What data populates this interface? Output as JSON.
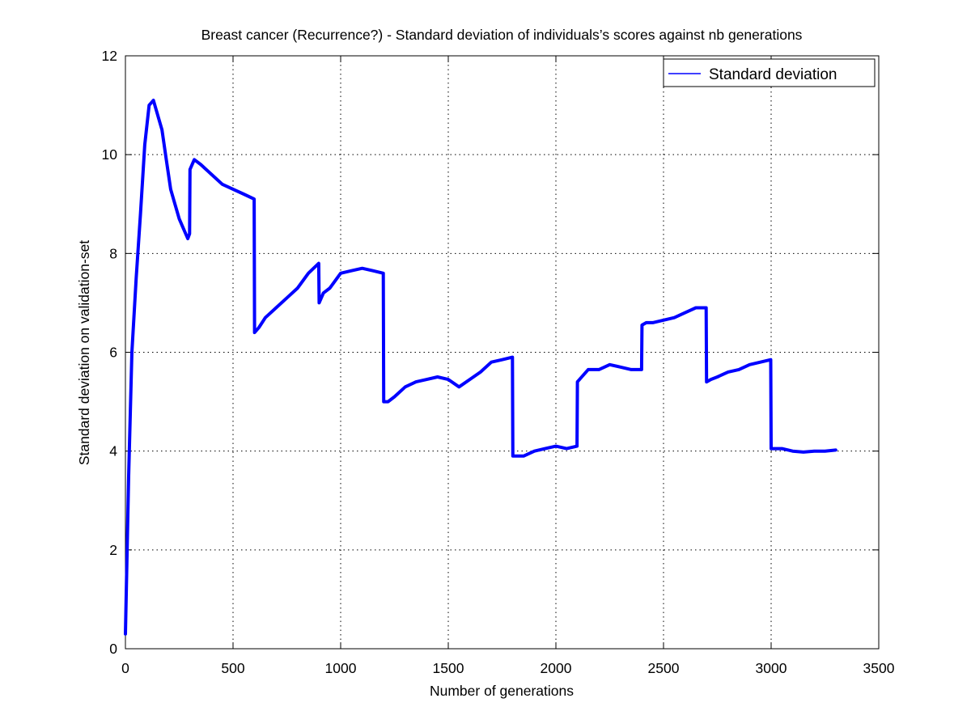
{
  "chart_data": {
    "type": "line",
    "title": "Breast cancer (Recurrence?) - Standard deviation of individuals’s scores against nb generations",
    "xlabel": "Number of generations",
    "ylabel": "Standard deviation on validation-set",
    "xlim": [
      0,
      3500
    ],
    "ylim": [
      0,
      12
    ],
    "xticks": [
      0,
      500,
      1000,
      1500,
      2000,
      2500,
      3000,
      3500
    ],
    "yticks": [
      0,
      2,
      4,
      6,
      8,
      10,
      12
    ],
    "grid": true,
    "legend_position": "top-right",
    "series": [
      {
        "name": "Standard deviation",
        "color": "#0000ff",
        "x": [
          0,
          15,
          30,
          50,
          70,
          90,
          110,
          130,
          150,
          170,
          190,
          210,
          230,
          250,
          270,
          290,
          298,
          300,
          320,
          350,
          400,
          450,
          500,
          550,
          598,
          600,
          620,
          650,
          700,
          750,
          800,
          850,
          898,
          900,
          920,
          950,
          1000,
          1050,
          1100,
          1150,
          1198,
          1200,
          1220,
          1250,
          1300,
          1350,
          1400,
          1450,
          1500,
          1550,
          1600,
          1650,
          1700,
          1750,
          1798,
          1800,
          1820,
          1850,
          1900,
          1950,
          2000,
          2050,
          2098,
          2100,
          2120,
          2150,
          2200,
          2250,
          2300,
          2350,
          2398,
          2400,
          2420,
          2450,
          2500,
          2550,
          2600,
          2650,
          2698,
          2700,
          2720,
          2750,
          2800,
          2850,
          2900,
          2950,
          2998,
          3000,
          3050,
          3100,
          3150,
          3200,
          3250,
          3300
        ],
        "y": [
          0.3,
          3.5,
          6.0,
          7.5,
          8.8,
          10.2,
          11.0,
          11.1,
          10.8,
          10.5,
          9.9,
          9.3,
          9.0,
          8.7,
          8.5,
          8.3,
          8.4,
          9.7,
          9.9,
          9.8,
          9.6,
          9.4,
          9.3,
          9.2,
          9.1,
          6.4,
          6.5,
          6.7,
          6.9,
          7.1,
          7.3,
          7.6,
          7.8,
          7.0,
          7.2,
          7.3,
          7.6,
          7.65,
          7.7,
          7.65,
          7.6,
          5.0,
          5.0,
          5.1,
          5.3,
          5.4,
          5.45,
          5.5,
          5.45,
          5.3,
          5.45,
          5.6,
          5.8,
          5.85,
          5.9,
          3.9,
          3.9,
          3.9,
          4.0,
          4.05,
          4.1,
          4.05,
          4.1,
          5.4,
          5.5,
          5.65,
          5.65,
          5.75,
          5.7,
          5.65,
          5.65,
          6.55,
          6.6,
          6.6,
          6.65,
          6.7,
          6.8,
          6.9,
          6.9,
          5.4,
          5.45,
          5.5,
          5.6,
          5.65,
          5.75,
          5.8,
          5.85,
          4.05,
          4.05,
          4.0,
          3.98,
          4.0,
          4.0,
          4.02
        ]
      }
    ]
  }
}
